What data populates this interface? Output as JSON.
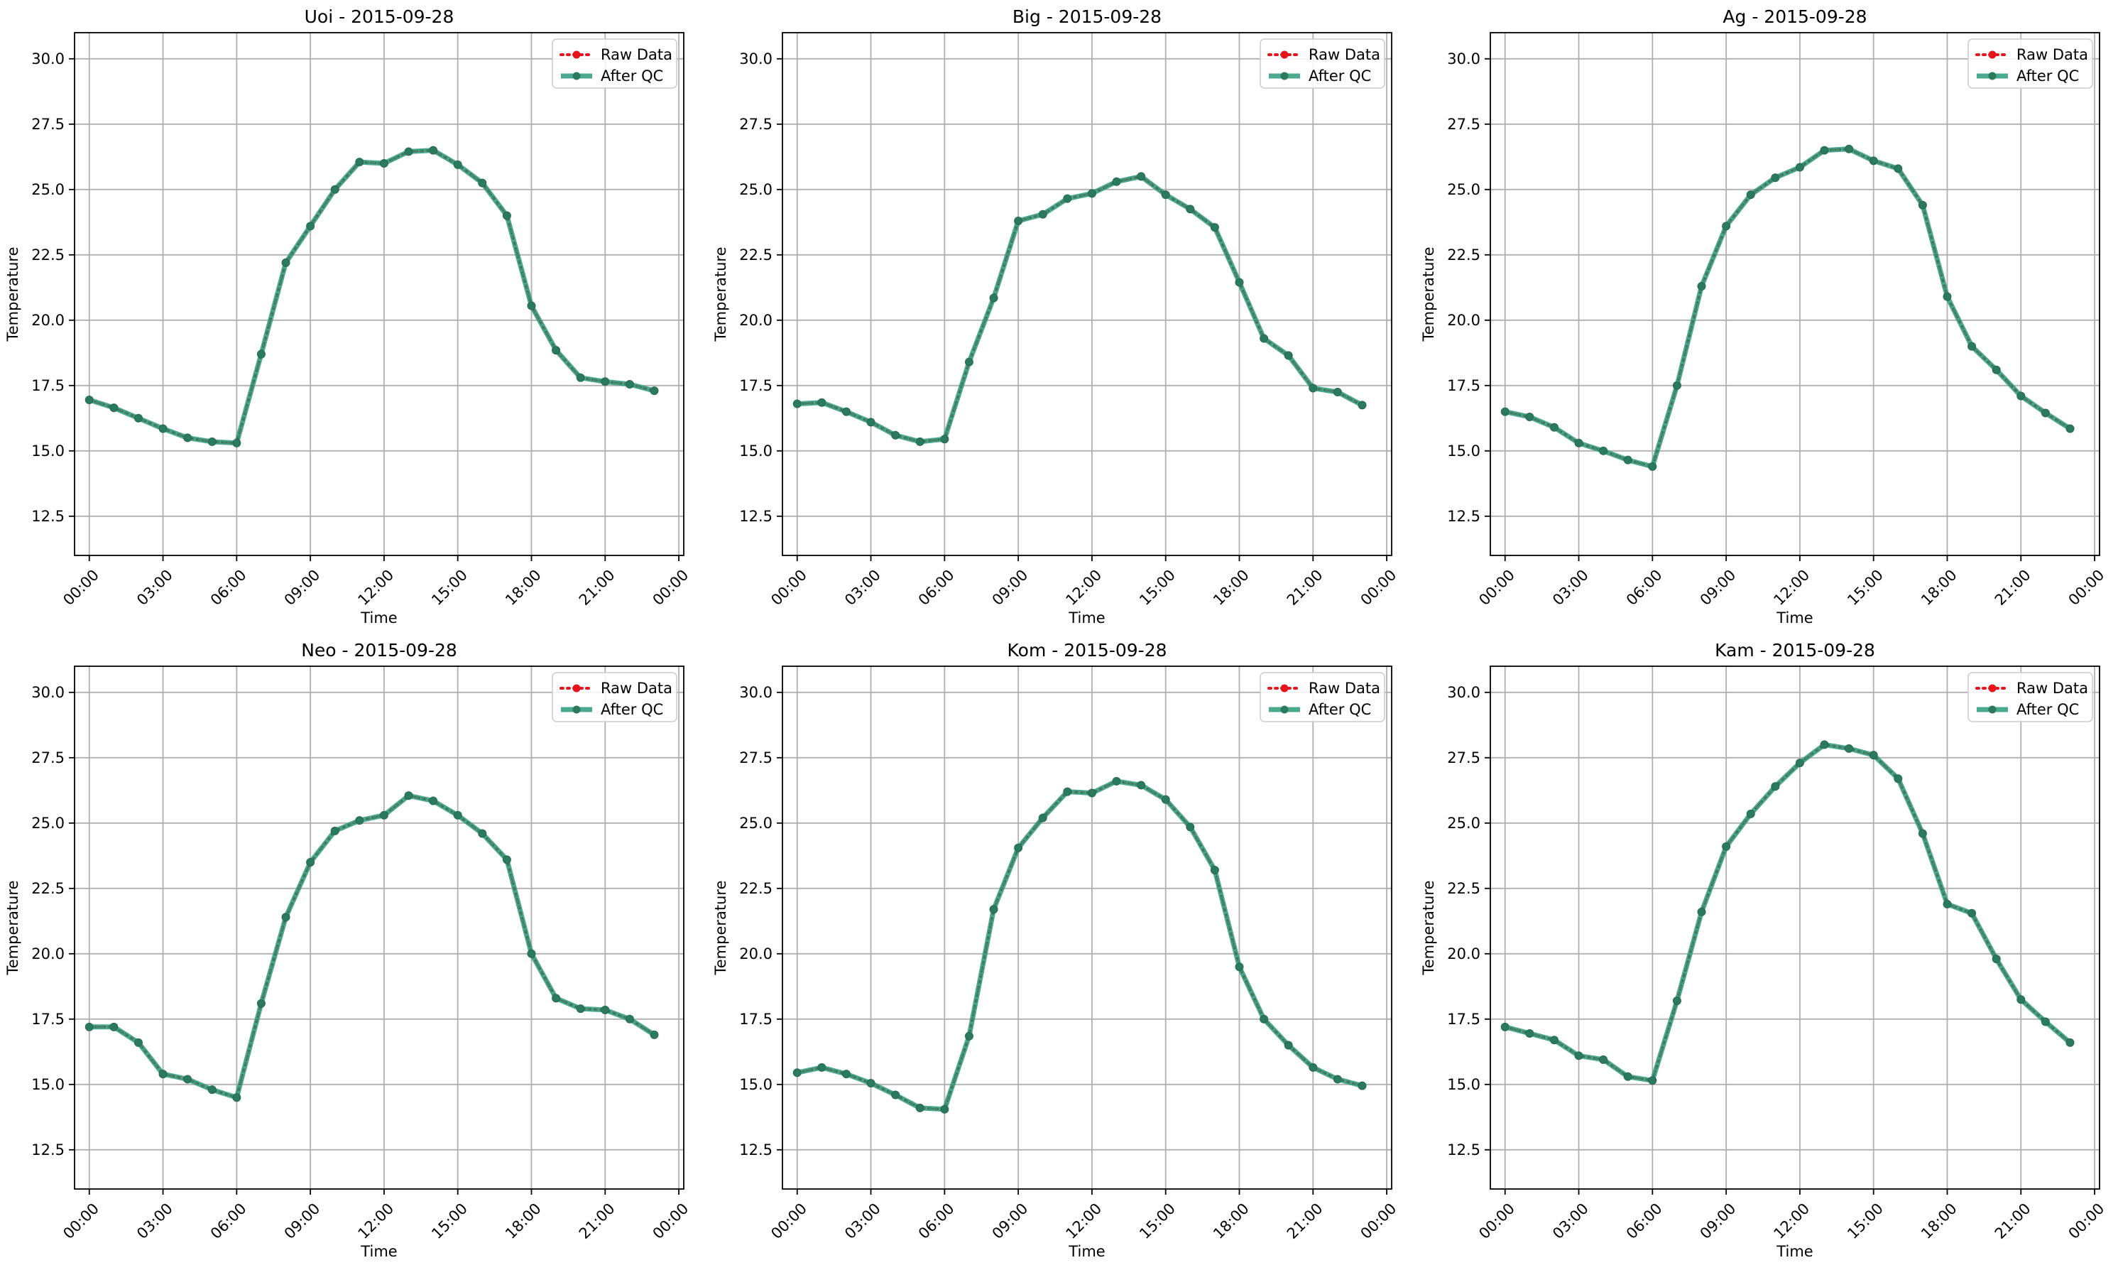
{
  "colors": {
    "raw": "#e8141c",
    "qc": "#2a9b7c",
    "grid": "#b0b0b0",
    "axis": "#000000",
    "legend_border": "#cccccc"
  },
  "legend": {
    "raw_label": "Raw Data",
    "qc_label": "After QC"
  },
  "chart_data": [
    {
      "type": "line",
      "title": "Uoi - 2015-09-28",
      "xlabel": "Time",
      "ylabel": "Temperature",
      "x_ticks": [
        "00:00",
        "03:00",
        "06:00",
        "09:00",
        "12:00",
        "15:00",
        "18:00",
        "21:00",
        "00:00"
      ],
      "y_ticks": [
        "12.5",
        "15.0",
        "17.5",
        "20.0",
        "22.5",
        "25.0",
        "27.5",
        "30.0"
      ],
      "x": [
        "00:00",
        "01:00",
        "02:00",
        "03:00",
        "04:00",
        "05:00",
        "06:00",
        "07:00",
        "08:00",
        "09:00",
        "10:00",
        "11:00",
        "12:00",
        "13:00",
        "14:00",
        "15:00",
        "16:00",
        "17:00",
        "18:00",
        "19:00",
        "20:00",
        "21:00",
        "22:00",
        "23:00"
      ],
      "xlim_hours": [
        -0.6,
        24.2
      ],
      "ylim": [
        11.0,
        31.0
      ],
      "grid": true,
      "legend_position": "top-right",
      "series": [
        {
          "name": "Raw Data",
          "values": [
            16.95,
            16.65,
            16.25,
            15.85,
            15.5,
            15.35,
            15.3,
            18.7,
            22.2,
            23.6,
            25.0,
            26.05,
            26.0,
            26.45,
            26.5,
            25.95,
            25.25,
            24.0,
            20.55,
            18.85,
            17.8,
            17.65,
            17.55,
            17.3
          ]
        },
        {
          "name": "After QC",
          "values": [
            16.95,
            16.65,
            16.25,
            15.85,
            15.5,
            15.35,
            15.3,
            18.7,
            22.2,
            23.6,
            25.0,
            26.05,
            26.0,
            26.45,
            26.5,
            25.95,
            25.25,
            24.0,
            20.55,
            18.85,
            17.8,
            17.65,
            17.55,
            17.3
          ]
        }
      ]
    },
    {
      "type": "line",
      "title": "Big - 2015-09-28",
      "xlabel": "Time",
      "ylabel": "Temperature",
      "x_ticks": [
        "00:00",
        "03:00",
        "06:00",
        "09:00",
        "12:00",
        "15:00",
        "18:00",
        "21:00",
        "00:00"
      ],
      "y_ticks": [
        "12.5",
        "15.0",
        "17.5",
        "20.0",
        "22.5",
        "25.0",
        "27.5",
        "30.0"
      ],
      "x": [
        "00:00",
        "01:00",
        "02:00",
        "03:00",
        "04:00",
        "05:00",
        "06:00",
        "07:00",
        "08:00",
        "09:00",
        "10:00",
        "11:00",
        "12:00",
        "13:00",
        "14:00",
        "15:00",
        "16:00",
        "17:00",
        "18:00",
        "19:00",
        "20:00",
        "21:00",
        "22:00",
        "23:00"
      ],
      "xlim_hours": [
        -0.6,
        24.2
      ],
      "ylim": [
        11.0,
        31.0
      ],
      "grid": true,
      "legend_position": "top-right",
      "series": [
        {
          "name": "Raw Data",
          "values": [
            16.8,
            16.85,
            16.5,
            16.1,
            15.6,
            15.35,
            15.45,
            18.4,
            20.85,
            23.8,
            24.05,
            24.65,
            24.85,
            25.3,
            25.5,
            24.8,
            24.25,
            23.55,
            21.45,
            19.3,
            18.65,
            17.4,
            17.25,
            16.75
          ]
        },
        {
          "name": "After QC",
          "values": [
            16.8,
            16.85,
            16.5,
            16.1,
            15.6,
            15.35,
            15.45,
            18.4,
            20.85,
            23.8,
            24.05,
            24.65,
            24.85,
            25.3,
            25.5,
            24.8,
            24.25,
            23.55,
            21.45,
            19.3,
            18.65,
            17.4,
            17.25,
            16.75
          ]
        }
      ]
    },
    {
      "type": "line",
      "title": "Ag - 2015-09-28",
      "xlabel": "Time",
      "ylabel": "Temperature",
      "x_ticks": [
        "00:00",
        "03:00",
        "06:00",
        "09:00",
        "12:00",
        "15:00",
        "18:00",
        "21:00",
        "00:00"
      ],
      "y_ticks": [
        "12.5",
        "15.0",
        "17.5",
        "20.0",
        "22.5",
        "25.0",
        "27.5",
        "30.0"
      ],
      "x": [
        "00:00",
        "01:00",
        "02:00",
        "03:00",
        "04:00",
        "05:00",
        "06:00",
        "07:00",
        "08:00",
        "09:00",
        "10:00",
        "11:00",
        "12:00",
        "13:00",
        "14:00",
        "15:00",
        "16:00",
        "17:00",
        "18:00",
        "19:00",
        "20:00",
        "21:00",
        "22:00",
        "23:00"
      ],
      "xlim_hours": [
        -0.6,
        24.2
      ],
      "ylim": [
        11.0,
        31.0
      ],
      "grid": true,
      "legend_position": "top-right",
      "series": [
        {
          "name": "Raw Data",
          "values": [
            16.5,
            16.3,
            15.9,
            15.3,
            15.0,
            14.65,
            14.4,
            17.5,
            21.3,
            23.6,
            24.8,
            25.45,
            25.85,
            26.5,
            26.55,
            26.1,
            25.8,
            24.4,
            20.9,
            19.0,
            18.1,
            17.1,
            16.45,
            15.85
          ]
        },
        {
          "name": "After QC",
          "values": [
            16.5,
            16.3,
            15.9,
            15.3,
            15.0,
            14.65,
            14.4,
            17.5,
            21.3,
            23.6,
            24.8,
            25.45,
            25.85,
            26.5,
            26.55,
            26.1,
            25.8,
            24.4,
            20.9,
            19.0,
            18.1,
            17.1,
            16.45,
            15.85
          ]
        }
      ]
    },
    {
      "type": "line",
      "title": "Neo - 2015-09-28",
      "xlabel": "Time",
      "ylabel": "Temperature",
      "x_ticks": [
        "00:00",
        "03:00",
        "06:00",
        "09:00",
        "12:00",
        "15:00",
        "18:00",
        "21:00",
        "00:00"
      ],
      "y_ticks": [
        "12.5",
        "15.0",
        "17.5",
        "20.0",
        "22.5",
        "25.0",
        "27.5",
        "30.0"
      ],
      "x": [
        "00:00",
        "01:00",
        "02:00",
        "03:00",
        "04:00",
        "05:00",
        "06:00",
        "07:00",
        "08:00",
        "09:00",
        "10:00",
        "11:00",
        "12:00",
        "13:00",
        "14:00",
        "15:00",
        "16:00",
        "17:00",
        "18:00",
        "19:00",
        "20:00",
        "21:00",
        "22:00",
        "23:00"
      ],
      "xlim_hours": [
        -0.6,
        24.2
      ],
      "ylim": [
        11.0,
        31.0
      ],
      "grid": true,
      "legend_position": "top-right",
      "series": [
        {
          "name": "Raw Data",
          "values": [
            17.2,
            17.2,
            16.6,
            15.4,
            15.2,
            14.8,
            14.5,
            18.1,
            21.4,
            23.5,
            24.7,
            25.1,
            25.3,
            26.05,
            25.85,
            25.3,
            24.6,
            23.6,
            20.0,
            18.3,
            17.9,
            17.85,
            17.5,
            16.9
          ]
        },
        {
          "name": "After QC",
          "values": [
            17.2,
            17.2,
            16.6,
            15.4,
            15.2,
            14.8,
            14.5,
            18.1,
            21.4,
            23.5,
            24.7,
            25.1,
            25.3,
            26.05,
            25.85,
            25.3,
            24.6,
            23.6,
            20.0,
            18.3,
            17.9,
            17.85,
            17.5,
            16.9
          ]
        }
      ]
    },
    {
      "type": "line",
      "title": "Kom - 2015-09-28",
      "xlabel": "Time",
      "ylabel": "Temperature",
      "x_ticks": [
        "00:00",
        "03:00",
        "06:00",
        "09:00",
        "12:00",
        "15:00",
        "18:00",
        "21:00",
        "00:00"
      ],
      "y_ticks": [
        "12.5",
        "15.0",
        "17.5",
        "20.0",
        "22.5",
        "25.0",
        "27.5",
        "30.0"
      ],
      "x": [
        "00:00",
        "01:00",
        "02:00",
        "03:00",
        "04:00",
        "05:00",
        "06:00",
        "07:00",
        "08:00",
        "09:00",
        "10:00",
        "11:00",
        "12:00",
        "13:00",
        "14:00",
        "15:00",
        "16:00",
        "17:00",
        "18:00",
        "19:00",
        "20:00",
        "21:00",
        "22:00",
        "23:00"
      ],
      "xlim_hours": [
        -0.6,
        24.2
      ],
      "ylim": [
        11.0,
        31.0
      ],
      "grid": true,
      "legend_position": "top-right",
      "series": [
        {
          "name": "Raw Data",
          "values": [
            15.45,
            15.65,
            15.4,
            15.05,
            14.6,
            14.1,
            14.05,
            16.85,
            21.7,
            24.05,
            25.2,
            26.2,
            26.15,
            26.6,
            26.45,
            25.9,
            24.85,
            23.2,
            19.5,
            17.5,
            16.5,
            15.65,
            15.2,
            14.95
          ]
        },
        {
          "name": "After QC",
          "values": [
            15.45,
            15.65,
            15.4,
            15.05,
            14.6,
            14.1,
            14.05,
            16.85,
            21.7,
            24.05,
            25.2,
            26.2,
            26.15,
            26.6,
            26.45,
            25.9,
            24.85,
            23.2,
            19.5,
            17.5,
            16.5,
            15.65,
            15.2,
            14.95
          ]
        }
      ]
    },
    {
      "type": "line",
      "title": "Kam - 2015-09-28",
      "xlabel": "Time",
      "ylabel": "Temperature",
      "x_ticks": [
        "00:00",
        "03:00",
        "06:00",
        "09:00",
        "12:00",
        "15:00",
        "18:00",
        "21:00",
        "00:00"
      ],
      "y_ticks": [
        "12.5",
        "15.0",
        "17.5",
        "20.0",
        "22.5",
        "25.0",
        "27.5",
        "30.0"
      ],
      "x": [
        "00:00",
        "01:00",
        "02:00",
        "03:00",
        "04:00",
        "05:00",
        "06:00",
        "07:00",
        "08:00",
        "09:00",
        "10:00",
        "11:00",
        "12:00",
        "13:00",
        "14:00",
        "15:00",
        "16:00",
        "17:00",
        "18:00",
        "19:00",
        "20:00",
        "21:00",
        "22:00",
        "23:00"
      ],
      "xlim_hours": [
        -0.6,
        24.2
      ],
      "ylim": [
        11.0,
        31.0
      ],
      "grid": true,
      "legend_position": "top-right",
      "series": [
        {
          "name": "Raw Data",
          "values": [
            17.2,
            16.95,
            16.7,
            16.1,
            15.95,
            15.3,
            15.15,
            18.2,
            21.6,
            24.1,
            25.35,
            26.4,
            27.3,
            28.0,
            27.85,
            27.6,
            26.7,
            24.6,
            21.9,
            21.55,
            19.8,
            18.25,
            17.4,
            16.6
          ]
        },
        {
          "name": "After QC",
          "values": [
            17.2,
            16.95,
            16.7,
            16.1,
            15.95,
            15.3,
            15.15,
            18.2,
            21.6,
            24.1,
            25.35,
            26.4,
            27.3,
            28.0,
            27.85,
            27.6,
            26.7,
            24.6,
            21.9,
            21.55,
            19.8,
            18.25,
            17.4,
            16.6
          ]
        }
      ]
    }
  ]
}
